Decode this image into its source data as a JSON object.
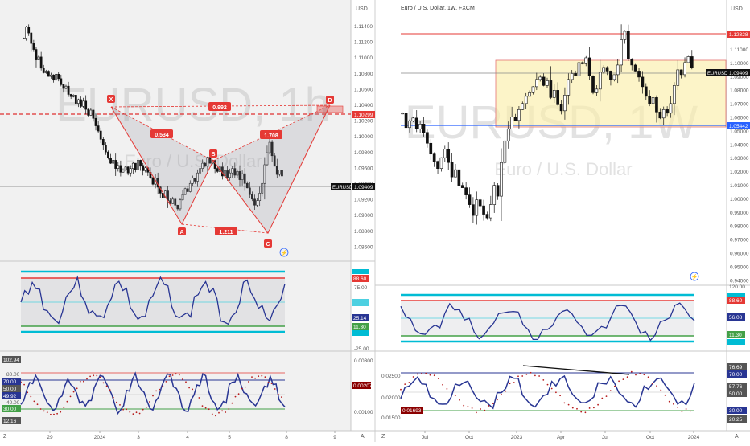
{
  "left_panel": {
    "watermark": {
      "symbol": "EURUSD, 1h",
      "name": "Euro / U.S. Dollar"
    },
    "currency": "USD",
    "price_ticks": [
      "1.11400",
      "1.11200",
      "1.11000",
      "1.10800",
      "1.10600",
      "1.10400",
      "1.10200",
      "1.10000",
      "1.09800",
      "1.09600",
      "1.09400",
      "1.09200",
      "1.09000",
      "1.08800",
      "1.08600"
    ],
    "last_price": "1.09409",
    "symbol_tag": "EURUSD",
    "level_label": "1.10299",
    "pattern_points": [
      {
        "label": "X"
      },
      {
        "label": "A"
      },
      {
        "label": "B"
      },
      {
        "label": "C"
      },
      {
        "label": "D"
      }
    ],
    "ratios": [
      "0.534",
      "0.992",
      "1.211",
      "1.708"
    ],
    "rsi_ticks": [
      "75.00",
      "-25.00"
    ],
    "rsi_tags": [
      "88.60",
      "25.14",
      "11.30"
    ],
    "stoch_ticks": [
      "80.00",
      "40.00",
      "0.00300",
      "0.00100"
    ],
    "stoch_tags": [
      "102.94",
      "70.00",
      "50.00",
      "49.92",
      "30.00",
      "12.16",
      "0.00207"
    ],
    "time_ticks": [
      "29",
      "2024",
      "3",
      "4",
      "5",
      "8",
      "9"
    ],
    "corner_left": "Z",
    "corner_right": "A"
  },
  "right_panel": {
    "title": "Euro / U.S. Dollar, 1W, FXCM",
    "watermark": {
      "symbol": "EURUSD, 1W",
      "name": "Euro / U.S. Dollar"
    },
    "currency": "USD",
    "price_ticks": [
      "1.11000",
      "1.10000",
      "1.09000",
      "1.08000",
      "1.07000",
      "1.06000",
      "1.05000",
      "1.04000",
      "1.03000",
      "1.02000",
      "1.01000",
      "1.00000",
      "0.99000",
      "0.98000",
      "0.97000",
      "0.96000",
      "0.95000",
      "0.94000"
    ],
    "top_level": "1.12328",
    "last_price": "1.09409",
    "symbol_tag": "EURUSD",
    "bottom_level": "1.05442",
    "rsi_ticks": [
      "120.00"
    ],
    "rsi_tags": [
      "88.60",
      "56.08",
      "11.30"
    ],
    "stoch_ticks": [
      "0.02500",
      "0.02000",
      "0.01500"
    ],
    "stoch_tags": [
      "76.69",
      "70.00",
      "57.76",
      "50.00",
      "30.00",
      "20.25",
      "0.01693"
    ],
    "time_ticks": [
      "Jul",
      "Oct",
      "2023",
      "Apr",
      "Jul",
      "Oct",
      "2024"
    ],
    "corner_left": "Z",
    "corner_right": "A"
  },
  "chart_data": [
    {
      "type": "candlestick",
      "title": "EURUSD, 1h",
      "ylim": [
        1.084,
        1.116
      ],
      "close_series": [
        1.1125,
        1.114,
        1.1132,
        1.1118,
        1.111,
        1.1096,
        1.11,
        1.1085,
        1.1079,
        1.1081,
        1.1074,
        1.1076,
        1.1069,
        1.1077,
        1.1071,
        1.1063,
        1.1058,
        1.1061,
        1.105,
        1.1047,
        1.1049,
        1.1038,
        1.1043,
        1.1034,
        1.1041,
        1.103,
        1.1022,
        1.1029,
        1.1018,
        1.1008,
        1.1001,
        1.099,
        1.0982,
        1.0973,
        1.0965,
        1.0958,
        1.0962,
        1.0951,
        1.0955,
        1.0946,
        1.0949,
        1.0953,
        1.0945,
        1.0951,
        1.0958,
        1.0949,
        1.0962,
        1.0955,
        1.0948,
        1.0952,
        1.0946,
        1.0939,
        1.093,
        1.0938,
        1.0926,
        1.0918,
        1.0912,
        1.0921,
        1.0908,
        1.0904,
        1.091,
        1.0902,
        1.0897,
        1.0909,
        1.0916,
        1.0924,
        1.092,
        1.0931,
        1.0938,
        1.0934,
        1.0945,
        1.0951,
        1.0958,
        1.0954,
        1.0966,
        1.0958,
        1.0962,
        1.0951,
        1.0947,
        1.0953,
        1.0941,
        1.0948,
        1.0939,
        1.0945,
        1.0951,
        1.0942,
        1.0947,
        1.0936,
        1.0944,
        1.0931,
        1.0925,
        1.0916,
        1.091,
        1.0902,
        1.0908,
        1.0918,
        1.0931,
        1.0956,
        1.0972,
        1.0986,
        1.0968,
        1.0954,
        1.0943,
        1.0949,
        1.0941
      ]
    },
    {
      "type": "candlestick",
      "title": "Euro / U.S. Dollar, 1W, FXCM",
      "ylim": [
        0.935,
        1.13
      ],
      "close_series": [
        1.056,
        1.044,
        1.0495,
        1.052,
        1.043,
        1.047,
        1.04,
        1.031,
        1.022,
        1.016,
        1.01,
        1.019,
        1.026,
        1.015,
        1.003,
        1.009,
        0.996,
        0.994,
        0.988,
        0.98,
        0.971,
        0.984,
        0.979,
        0.972,
        0.969,
        0.98,
        0.996,
        0.987,
        1.015,
        1.033,
        1.043,
        1.053,
        1.05,
        1.059,
        1.064,
        1.07,
        1.073,
        1.078,
        1.084,
        1.086,
        1.079,
        1.083,
        1.069,
        1.075,
        1.063,
        1.058,
        1.071,
        1.084,
        1.089,
        1.087,
        1.098,
        1.097,
        1.102,
        1.087,
        1.073,
        1.076,
        1.09,
        1.094,
        1.091,
        1.084,
        1.088,
        1.096,
        1.117,
        1.124,
        1.101,
        1.096,
        1.091,
        1.086,
        1.078,
        1.07,
        1.064,
        1.069,
        1.057,
        1.052,
        1.059,
        1.056,
        1.064,
        1.079,
        1.092,
        1.088,
        1.098,
        1.103,
        1.094
      ]
    }
  ]
}
